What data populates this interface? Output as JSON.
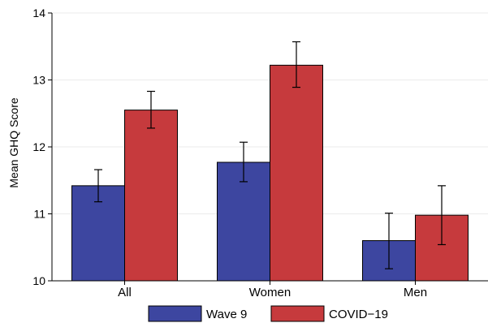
{
  "chart_data": {
    "type": "bar",
    "categories": [
      "All",
      "Women",
      "Men"
    ],
    "series": [
      {
        "name": "Wave 9",
        "color": "#3d46a0",
        "values": [
          11.42,
          11.77,
          10.6
        ],
        "ci_low": [
          11.18,
          11.48,
          10.18
        ],
        "ci_high": [
          11.66,
          12.07,
          11.01
        ]
      },
      {
        "name": "COVID−19",
        "color": "#c63a3d",
        "values": [
          12.55,
          13.22,
          10.98
        ],
        "ci_low": [
          12.28,
          12.89,
          10.54
        ],
        "ci_high": [
          12.83,
          13.57,
          11.42
        ]
      }
    ],
    "ylabel": "Mean GHQ Score",
    "xlabel": "",
    "ylim": [
      10,
      14
    ],
    "yticks": [
      10,
      11,
      12,
      13,
      14
    ],
    "grid": true,
    "legend_position": "bottom"
  }
}
